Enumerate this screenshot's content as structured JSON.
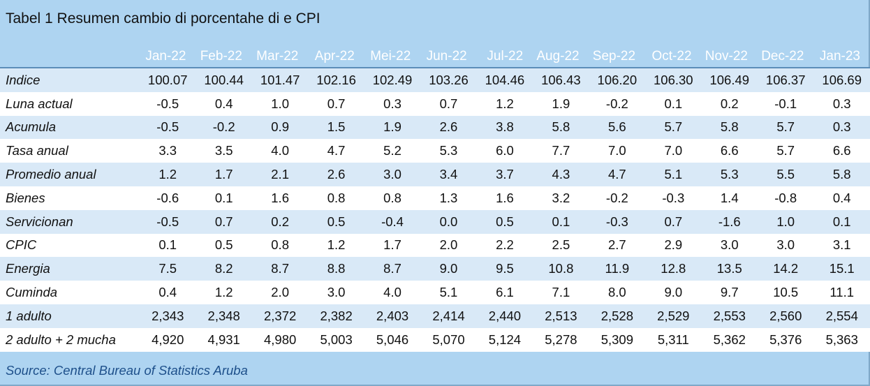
{
  "title": "Tabel 1 Resumen cambio di porcentahe di e CPI",
  "source": "Source: Central Bureau of Statistics Aruba",
  "colors": {
    "background": "#aed4f1",
    "header_text": "#ffffff",
    "row_alt": "#d9e9f7",
    "source_text": "#1d4f8a"
  },
  "columns": [
    "Jan-22",
    "Feb-22",
    "Mar-22",
    "Apr-22",
    "Mei-22",
    "Jun-22",
    "Jul-22",
    "Aug-22",
    "Sep-22",
    "Oct-22",
    "Nov-22",
    "Dec-22",
    "Jan-23"
  ],
  "rows": [
    {
      "label": "Indice",
      "values": [
        "100.07",
        "100.44",
        "101.47",
        "102.16",
        "102.49",
        "103.26",
        "104.46",
        "106.43",
        "106.20",
        "106.30",
        "106.49",
        "106.37",
        "106.69"
      ]
    },
    {
      "label": "Luna actual",
      "values": [
        "-0.5",
        "0.4",
        "1.0",
        "0.7",
        "0.3",
        "0.7",
        "1.2",
        "1.9",
        "-0.2",
        "0.1",
        "0.2",
        "-0.1",
        "0.3"
      ]
    },
    {
      "label": "Acumula",
      "values": [
        "-0.5",
        "-0.2",
        "0.9",
        "1.5",
        "1.9",
        "2.6",
        "3.8",
        "5.8",
        "5.6",
        "5.7",
        "5.8",
        "5.7",
        "0.3"
      ]
    },
    {
      "label": "Tasa anual",
      "values": [
        "3.3",
        "3.5",
        "4.0",
        "4.7",
        "5.2",
        "5.3",
        "6.0",
        "7.7",
        "7.0",
        "7.0",
        "6.6",
        "5.7",
        "6.6"
      ]
    },
    {
      "label": "Promedio anual",
      "values": [
        "1.2",
        "1.7",
        "2.1",
        "2.6",
        "3.0",
        "3.4",
        "3.7",
        "4.3",
        "4.7",
        "5.1",
        "5.3",
        "5.5",
        "5.8"
      ]
    },
    {
      "label": "Bienes",
      "values": [
        "-0.6",
        "0.1",
        "1.6",
        "0.8",
        "0.8",
        "1.3",
        "1.6",
        "3.2",
        "-0.2",
        "-0.3",
        "1.4",
        "-0.8",
        "0.4"
      ]
    },
    {
      "label": "Servicionan",
      "values": [
        "-0.5",
        "0.7",
        "0.2",
        "0.5",
        "-0.4",
        "0.0",
        "0.5",
        "0.1",
        "-0.3",
        "0.7",
        "-1.6",
        "1.0",
        "0.1"
      ]
    },
    {
      "label": "CPIC",
      "values": [
        "0.1",
        "0.5",
        "0.8",
        "1.2",
        "1.7",
        "2.0",
        "2.2",
        "2.5",
        "2.7",
        "2.9",
        "3.0",
        "3.0",
        "3.1"
      ]
    },
    {
      "label": "Energia",
      "values": [
        "7.5",
        "8.2",
        "8.7",
        "8.8",
        "8.7",
        "9.0",
        "9.5",
        "10.8",
        "11.9",
        "12.8",
        "13.5",
        "14.2",
        "15.1"
      ]
    },
    {
      "label": "Cuminda",
      "values": [
        "0.4",
        "1.2",
        "2.0",
        "3.0",
        "4.0",
        "5.1",
        "6.1",
        "7.1",
        "8.0",
        "9.0",
        "9.7",
        "10.5",
        "11.1"
      ]
    },
    {
      "label": "1 adulto",
      "values": [
        "2,343",
        "2,348",
        "2,372",
        "2,382",
        "2,403",
        "2,414",
        "2,440",
        "2,513",
        "2,528",
        "2,529",
        "2,553",
        "2,560",
        "2,554"
      ]
    },
    {
      "label": "2 adulto  + 2 mucha",
      "values": [
        "4,920",
        "4,931",
        "4,980",
        "5,003",
        "5,046",
        "5,070",
        "5,124",
        "5,278",
        "5,309",
        "5,311",
        "5,362",
        "5,376",
        "5,363"
      ]
    }
  ]
}
